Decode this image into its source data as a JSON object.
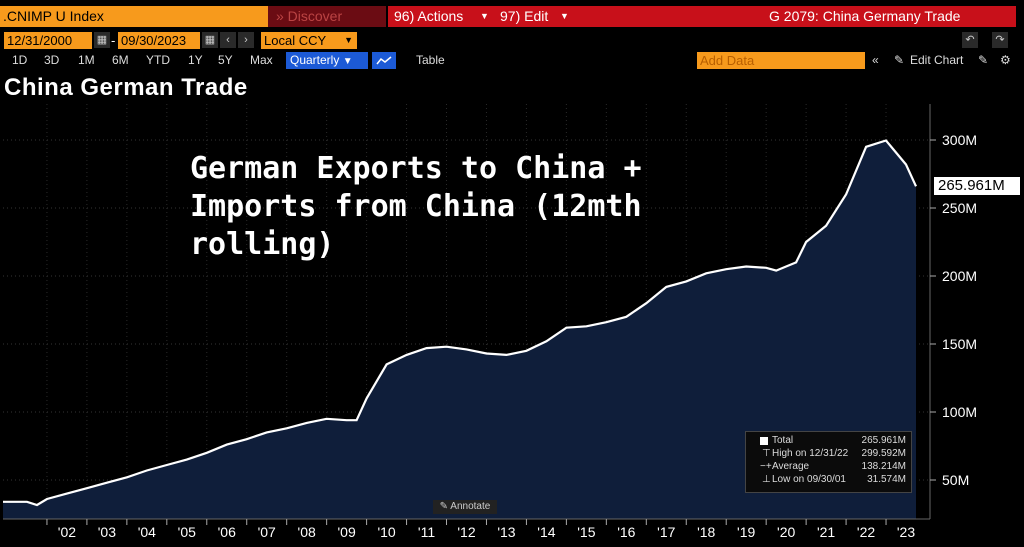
{
  "toolbar": {
    "ticker": ".CNIMP U Index",
    "discover": "» Discover",
    "actions": "96) Actions",
    "edit": "97) Edit",
    "function_title": "G 2079: China Germany Trade"
  },
  "range": {
    "start_date": "12/31/2000",
    "end_date": "09/30/2023",
    "currency": "Local CCY",
    "periods": [
      "1D",
      "3D",
      "1M",
      "6M",
      "YTD",
      "1Y",
      "5Y",
      "Max"
    ],
    "frequency": "Quarterly",
    "table_label": "Table",
    "add_data_placeholder": "Add Data",
    "edit_chart_label": "Edit Chart"
  },
  "chart_title": "China German Trade",
  "annotation_text": "German Exports to China + Imports from China (12mth rolling)",
  "annotate_button": "Annotate",
  "last_value_label": "265.961M",
  "legend": {
    "rows": [
      {
        "label": "Total",
        "value": "265.961M"
      },
      {
        "label": "High on 12/31/22",
        "value": "299.592M"
      },
      {
        "label": "Average",
        "value": "138.214M"
      },
      {
        "label": "Low on 09/30/01",
        "value": "31.574M"
      }
    ]
  },
  "colors": {
    "accent_orange": "#f79a1c",
    "toolbar_red": "#c8101a",
    "fill": "#0f1e3a",
    "line": "#ffffff"
  },
  "chart_data": {
    "type": "area",
    "title": "China German Trade",
    "xlabel": "",
    "ylabel": "",
    "ylim": [
      20,
      310
    ],
    "y_ticks": [
      "50M",
      "100M",
      "150M",
      "200M",
      "250M",
      "300M"
    ],
    "x_ticks": [
      "'02",
      "'03",
      "'04",
      "'05",
      "'06",
      "'07",
      "'08",
      "'09",
      "'10",
      "'11",
      "'12",
      "'13",
      "'14",
      "'15",
      "'16",
      "'17",
      "'18",
      "'19",
      "'20",
      "'21",
      "'22",
      "'23"
    ],
    "series": [
      {
        "name": "Total",
        "x": [
          2000.9,
          2001.5,
          2001.75,
          2002.0,
          2002.5,
          2003.0,
          2003.5,
          2004.0,
          2004.5,
          2005.0,
          2005.5,
          2006.0,
          2006.5,
          2007.0,
          2007.5,
          2008.0,
          2008.5,
          2009.0,
          2009.5,
          2009.75,
          2010.0,
          2010.5,
          2011.0,
          2011.5,
          2012.0,
          2012.5,
          2013.0,
          2013.5,
          2014.0,
          2014.5,
          2015.0,
          2015.5,
          2016.0,
          2016.5,
          2017.0,
          2017.5,
          2018.0,
          2018.5,
          2019.0,
          2019.5,
          2020.0,
          2020.25,
          2020.5,
          2020.75,
          2021.0,
          2021.5,
          2022.0,
          2022.5,
          2023.0,
          2023.5,
          2023.75
        ],
        "y": [
          34,
          34,
          31.6,
          36,
          40,
          44,
          48,
          52,
          57,
          61,
          65,
          70,
          76,
          80,
          85,
          88,
          92,
          95,
          94,
          94,
          110,
          135,
          142,
          147,
          148,
          146,
          143,
          142,
          145,
          152,
          162,
          163,
          166,
          170,
          180,
          192,
          196,
          202,
          205,
          207,
          206,
          204,
          207,
          210,
          225,
          237,
          260,
          295,
          299.6,
          282,
          265.961
        ]
      }
    ]
  }
}
